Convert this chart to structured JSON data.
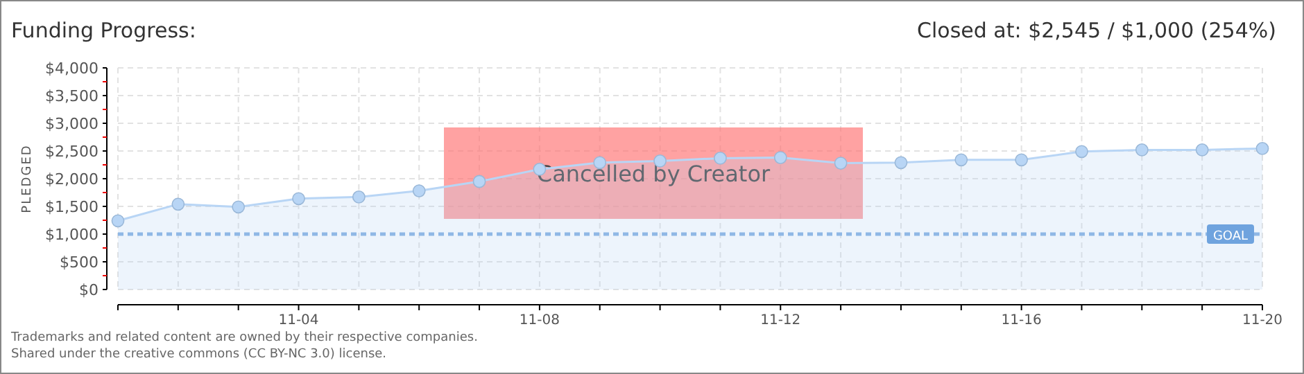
{
  "chart_data": {
    "type": "area",
    "title": "Funding Progress:",
    "subtitle": "Closed at: $2,545 / $1,000 (254%)",
    "ylabel": "PLEDGED",
    "categories": [
      null,
      null,
      null,
      "11-04",
      null,
      null,
      null,
      "11-08",
      null,
      null,
      null,
      "11-12",
      null,
      null,
      null,
      "11-16",
      null,
      null,
      null,
      "11-20"
    ],
    "series": [
      {
        "color": "#b8d5f5",
        "values": [
          1240,
          1540,
          1490,
          1640,
          1670,
          1780,
          1950,
          2170,
          2290,
          2320,
          2370,
          2380,
          2280,
          2290,
          2340,
          2340,
          2490,
          2520,
          2520,
          2545
        ]
      }
    ],
    "ylim": [
      0,
      4000
    ],
    "yticks": [
      {
        "value": 0,
        "label": "$0"
      },
      {
        "value": 250,
        "label": null
      },
      {
        "value": 500,
        "label": "$500"
      },
      {
        "value": 750,
        "label": null
      },
      {
        "value": 1000,
        "label": "$1,000"
      },
      {
        "value": 1250,
        "label": null
      },
      {
        "value": 1500,
        "label": "$1,500"
      },
      {
        "value": 1750,
        "label": null
      },
      {
        "value": 2000,
        "label": "$2,000"
      },
      {
        "value": 2250,
        "label": null
      },
      {
        "value": 2500,
        "label": "$2,500"
      },
      {
        "value": 2750,
        "label": null
      },
      {
        "value": 3000,
        "label": "$3,000"
      },
      {
        "value": 3250,
        "label": null
      },
      {
        "value": 3500,
        "label": "$3,500"
      },
      {
        "value": 3750,
        "label": null
      },
      {
        "value": 4000,
        "label": "$4,000"
      }
    ],
    "ref_lines": [
      {
        "axis": "y",
        "value": 1000,
        "label": "GOAL",
        "color": "#8fb8e6",
        "line_style": "dashed"
      }
    ],
    "grid": true,
    "marker": "circle",
    "annotations": [
      "Cancelled by Creator",
      "Trademarks and related content are owned by their respective companies.",
      "Shared under the creative commons (CC BY-NC 3.0) license."
    ]
  }
}
